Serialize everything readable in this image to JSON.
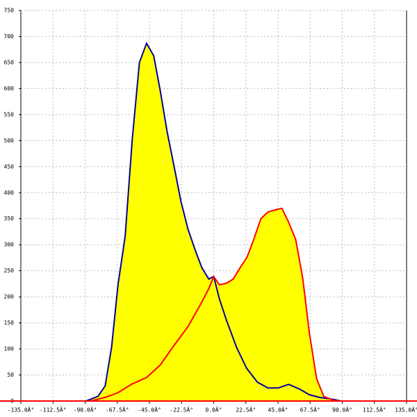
{
  "chart_data": {
    "type": "area",
    "grid": true,
    "xlim": [
      -135,
      135
    ],
    "ylim": [
      0,
      750
    ],
    "xticks": [
      {
        "value": -135,
        "label": "-135.0Â°"
      },
      {
        "value": -112.5,
        "label": "-112.5Â°"
      },
      {
        "value": -90,
        "label": "-90.0Â°"
      },
      {
        "value": -67.5,
        "label": "-67.5Â°"
      },
      {
        "value": -45,
        "label": "-45.0Â°"
      },
      {
        "value": -22.5,
        "label": "-22.5Â°"
      },
      {
        "value": 0,
        "label": "0.0Â°"
      },
      {
        "value": 22.5,
        "label": "22.5Â°"
      },
      {
        "value": 45,
        "label": "45.0Â°"
      },
      {
        "value": 67.5,
        "label": "67.5Â°"
      },
      {
        "value": 90,
        "label": "90.0Â°"
      },
      {
        "value": 112.5,
        "label": "112.5Â°"
      },
      {
        "value": 135,
        "label": "135.0Â°"
      }
    ],
    "yticks": [
      0,
      50,
      100,
      150,
      200,
      250,
      300,
      350,
      400,
      450,
      500,
      550,
      600,
      650,
      700,
      750
    ],
    "fill_color": "#ffff00",
    "axis_color": "#ff0000",
    "series": [
      {
        "color": "#000099",
        "x": [
          -90,
          -88.5,
          -81,
          -76,
          -71.5,
          -67,
          -62,
          -57,
          -52,
          -47,
          -42,
          -37.5,
          -32.6,
          -27.7,
          -22.9,
          -18,
          -13,
          -8.3,
          -3.4,
          0,
          4,
          8.8,
          16,
          23,
          30.6,
          38,
          45,
          52.5,
          60,
          67,
          74,
          84,
          89
        ],
        "values": [
          0,
          1,
          9,
          29,
          103,
          223,
          316,
          503,
          650,
          687,
          663,
          597,
          517,
          450,
          383,
          330,
          290,
          256,
          234,
          239,
          196,
          156,
          103,
          63,
          36,
          25,
          25,
          32,
          23,
          12,
          7,
          3,
          0
        ]
      },
      {
        "color": "#ff0000",
        "x": [
          -86,
          -76,
          -67,
          -57,
          -47,
          -37.5,
          -27.7,
          -18,
          -8.3,
          -3.4,
          0,
          4,
          8.8,
          13.6,
          18.5,
          23.3,
          28,
          33,
          38,
          43,
          47.7,
          52.5,
          57.4,
          62.3,
          67,
          72,
          77,
          84,
          89
        ],
        "values": [
          0,
          7,
          16,
          33,
          45,
          69,
          107,
          143,
          190,
          216,
          239,
          223,
          226,
          234,
          256,
          276,
          310,
          350,
          363,
          367,
          370,
          343,
          310,
          236,
          130,
          43,
          9,
          1,
          0
        ]
      }
    ]
  }
}
